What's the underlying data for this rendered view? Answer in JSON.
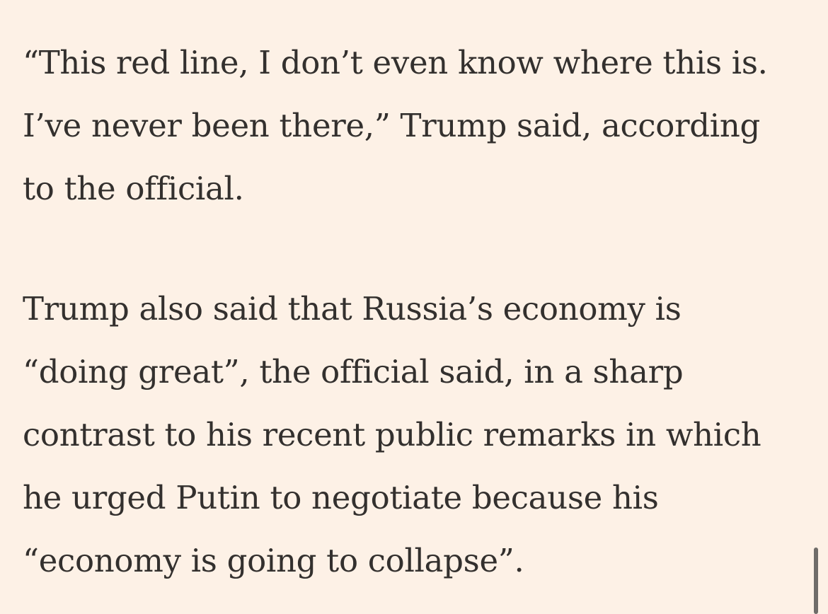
{
  "article": {
    "paragraphs": [
      {
        "lines": [
          "“This red line, I don’t even know where this is.",
          "I’ve never been there,” Trump said, according",
          "to the official."
        ]
      },
      {
        "lines": [
          "Trump also said that Russia’s economy is",
          "“doing great”, the official said, in a sharp",
          "contrast to his recent public remarks in which",
          "he urged Putin to negotiate because his",
          "“economy is going to collapse”."
        ]
      }
    ]
  },
  "colors": {
    "background": "#fdf1e6",
    "text": "#33302e",
    "scrollbar": "#6f6c69"
  }
}
